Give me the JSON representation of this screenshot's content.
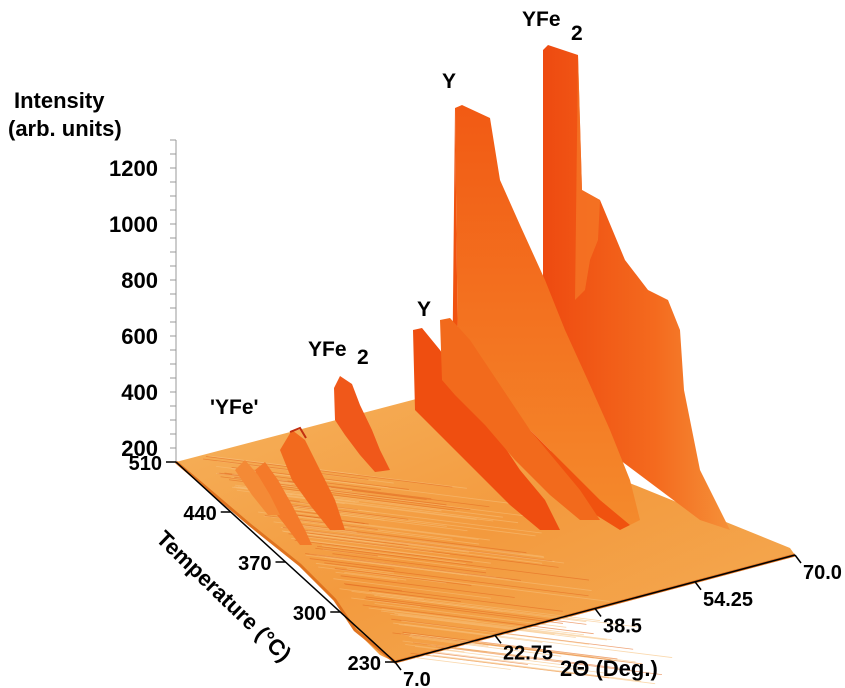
{
  "chart_data": {
    "type": "area",
    "title": "",
    "zlabel_line1": "Intensity",
    "zlabel_line2": "(arb. units)",
    "xlabel": "2Θ (Deg.)",
    "ylabel": "Temperature (°C)",
    "z_ticks": [
      200,
      400,
      600,
      800,
      1000,
      1200
    ],
    "x_ticks": [
      "7.0",
      "22.75",
      "38.5",
      "54.25",
      "70.0"
    ],
    "y_ticks": [
      "230",
      "300",
      "370",
      "440",
      "510"
    ],
    "xlim": [
      7.0,
      70.0
    ],
    "ylim": [
      230,
      510
    ],
    "zlim": [
      150,
      1300
    ],
    "peak_labels": [
      "'YFe'",
      "YFe",
      "2",
      "Y",
      "Y",
      "YFe",
      "2"
    ],
    "peaks": [
      {
        "label": "'YFe'",
        "two_theta": 12.0,
        "t_start": 430,
        "t_end": 510,
        "max_intensity": 200
      },
      {
        "label": "YFe2",
        "two_theta": 19.5,
        "t_start": 370,
        "t_end": 510,
        "max_intensity": 400
      },
      {
        "label": "Y",
        "two_theta": 28.0,
        "t_start": 300,
        "t_end": 510,
        "max_intensity": 620
      },
      {
        "label": "Y",
        "two_theta": 32.0,
        "t_start": 300,
        "t_end": 510,
        "max_intensity": 1310
      },
      {
        "label": "YFe2",
        "two_theta": 40.0,
        "t_start": 330,
        "t_end": 510,
        "max_intensity": 1450
      }
    ],
    "colors": {
      "base": "#f3a24a",
      "mid": "#f26a1c",
      "peak": "#e8420e",
      "dark": "#b8280a"
    }
  }
}
